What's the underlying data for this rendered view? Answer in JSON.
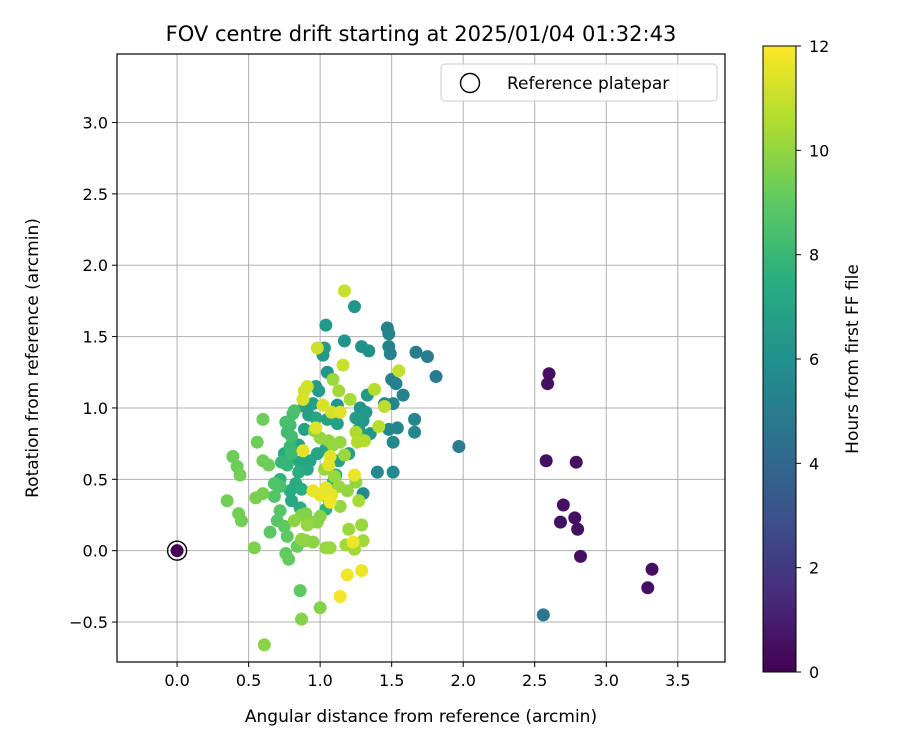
{
  "chart_data": {
    "type": "scatter",
    "title": "FOV centre drift starting at 2025/01/04 01:32:43",
    "xlabel": "Angular distance from reference (arcmin)",
    "ylabel": "Rotation from reference (arcmin)",
    "xlim": [
      -0.42,
      3.83
    ],
    "ylim": [
      -0.78,
      3.48
    ],
    "x_ticks": [
      0.0,
      0.5,
      1.0,
      1.5,
      2.0,
      2.5,
      3.0,
      3.5
    ],
    "x_tick_labels": [
      "0.0",
      "0.5",
      "1.0",
      "1.5",
      "2.0",
      "2.5",
      "3.0",
      "3.5"
    ],
    "y_ticks": [
      -0.5,
      0.0,
      0.5,
      1.0,
      1.5,
      2.0,
      2.5,
      3.0
    ],
    "y_tick_labels": [
      "−0.5",
      "0.0",
      "0.5",
      "1.0",
      "1.5",
      "2.0",
      "2.5",
      "3.0"
    ],
    "grid": true,
    "legend": {
      "position": "top-right",
      "entries": [
        "Reference platepar"
      ]
    },
    "colorbar": {
      "label": "Hours from first FF file",
      "range": [
        0,
        12
      ],
      "ticks": [
        0,
        2,
        4,
        6,
        8,
        10,
        12
      ],
      "tick_labels": [
        "0",
        "2",
        "4",
        "6",
        "8",
        "10",
        "12"
      ],
      "colormap": "viridis"
    },
    "reference": {
      "x": 0.0,
      "y": 0.0,
      "label": "Reference platepar"
    },
    "points": [
      {
        "x": 0.0,
        "y": 0.0,
        "h": 0.0
      },
      {
        "x": 2.6,
        "y": 1.24,
        "h": 0.5
      },
      {
        "x": 2.59,
        "y": 1.17,
        "h": 0.5
      },
      {
        "x": 2.58,
        "y": 0.63,
        "h": 0.5
      },
      {
        "x": 2.79,
        "y": 0.62,
        "h": 0.5
      },
      {
        "x": 2.7,
        "y": 0.32,
        "h": 0.5
      },
      {
        "x": 2.68,
        "y": 0.2,
        "h": 0.5
      },
      {
        "x": 2.78,
        "y": 0.23,
        "h": 0.5
      },
      {
        "x": 2.8,
        "y": 0.15,
        "h": 0.5
      },
      {
        "x": 2.82,
        "y": -0.04,
        "h": 0.5
      },
      {
        "x": 3.32,
        "y": -0.13,
        "h": 0.5
      },
      {
        "x": 3.29,
        "y": -0.26,
        "h": 0.5
      },
      {
        "x": 2.56,
        "y": -0.45,
        "h": 4.8
      },
      {
        "x": 1.97,
        "y": 0.73,
        "h": 5.0
      },
      {
        "x": 1.81,
        "y": 1.22,
        "h": 5.0
      },
      {
        "x": 1.75,
        "y": 1.36,
        "h": 5.0
      },
      {
        "x": 1.67,
        "y": 1.39,
        "h": 5.0
      },
      {
        "x": 1.5,
        "y": 1.2,
        "h": 5.2
      },
      {
        "x": 1.53,
        "y": 1.17,
        "h": 5.2
      },
      {
        "x": 1.47,
        "y": 1.56,
        "h": 5.3
      },
      {
        "x": 1.48,
        "y": 1.52,
        "h": 5.3
      },
      {
        "x": 1.48,
        "y": 1.43,
        "h": 5.3
      },
      {
        "x": 1.49,
        "y": 1.38,
        "h": 5.3
      },
      {
        "x": 1.58,
        "y": 1.09,
        "h": 5.3
      },
      {
        "x": 1.51,
        "y": 1.03,
        "h": 5.4
      },
      {
        "x": 1.45,
        "y": 1.03,
        "h": 5.4
      },
      {
        "x": 1.66,
        "y": 0.92,
        "h": 5.5
      },
      {
        "x": 1.66,
        "y": 0.83,
        "h": 5.5
      },
      {
        "x": 1.54,
        "y": 0.86,
        "h": 5.5
      },
      {
        "x": 1.48,
        "y": 0.85,
        "h": 5.5
      },
      {
        "x": 1.51,
        "y": 0.76,
        "h": 5.6
      },
      {
        "x": 1.51,
        "y": 0.55,
        "h": 5.6
      },
      {
        "x": 1.4,
        "y": 0.55,
        "h": 5.6
      },
      {
        "x": 1.3,
        "y": 0.4,
        "h": 5.7
      },
      {
        "x": 1.29,
        "y": 1.43,
        "h": 6.0
      },
      {
        "x": 1.34,
        "y": 1.4,
        "h": 6.0
      },
      {
        "x": 1.24,
        "y": 1.71,
        "h": 6.2
      },
      {
        "x": 1.17,
        "y": 1.47,
        "h": 6.2
      },
      {
        "x": 1.04,
        "y": 1.58,
        "h": 6.4
      },
      {
        "x": 1.03,
        "y": 1.42,
        "h": 6.4
      },
      {
        "x": 1.02,
        "y": 1.37,
        "h": 6.4
      },
      {
        "x": 1.05,
        "y": 1.25,
        "h": 6.3
      },
      {
        "x": 1.12,
        "y": 1.02,
        "h": 6.2
      },
      {
        "x": 1.28,
        "y": 1.0,
        "h": 6.2
      },
      {
        "x": 1.33,
        "y": 1.09,
        "h": 6.3
      },
      {
        "x": 1.32,
        "y": 0.97,
        "h": 6.3
      },
      {
        "x": 1.3,
        "y": 0.91,
        "h": 6.3
      },
      {
        "x": 1.35,
        "y": 0.82,
        "h": 6.3
      },
      {
        "x": 1.27,
        "y": 0.85,
        "h": 6.4
      },
      {
        "x": 1.25,
        "y": 0.93,
        "h": 6.5
      },
      {
        "x": 0.99,
        "y": 1.12,
        "h": 6.6
      },
      {
        "x": 0.97,
        "y": 1.15,
        "h": 6.6
      },
      {
        "x": 0.95,
        "y": 1.03,
        "h": 6.8
      },
      {
        "x": 0.89,
        "y": 1.01,
        "h": 6.8
      },
      {
        "x": 0.92,
        "y": 0.95,
        "h": 6.8
      },
      {
        "x": 0.89,
        "y": 0.85,
        "h": 6.9
      },
      {
        "x": 0.85,
        "y": 0.74,
        "h": 7.0
      },
      {
        "x": 0.97,
        "y": 0.93,
        "h": 7.0
      },
      {
        "x": 1.05,
        "y": 0.92,
        "h": 6.9
      },
      {
        "x": 1.12,
        "y": 0.89,
        "h": 6.8
      },
      {
        "x": 1.2,
        "y": 0.68,
        "h": 6.8
      },
      {
        "x": 1.13,
        "y": 0.63,
        "h": 6.9
      },
      {
        "x": 1.04,
        "y": 0.71,
        "h": 7.0
      },
      {
        "x": 0.98,
        "y": 0.68,
        "h": 7.0
      },
      {
        "x": 0.93,
        "y": 0.63,
        "h": 7.0
      },
      {
        "x": 0.91,
        "y": 0.57,
        "h": 7.1
      },
      {
        "x": 0.86,
        "y": 0.62,
        "h": 7.1
      },
      {
        "x": 0.8,
        "y": 0.65,
        "h": 7.2
      },
      {
        "x": 0.75,
        "y": 0.68,
        "h": 7.3
      },
      {
        "x": 0.83,
        "y": 0.47,
        "h": 7.3
      },
      {
        "x": 0.79,
        "y": 0.42,
        "h": 7.4
      },
      {
        "x": 0.87,
        "y": 0.43,
        "h": 7.5
      },
      {
        "x": 0.85,
        "y": 0.55,
        "h": 7.5
      },
      {
        "x": 0.8,
        "y": 0.35,
        "h": 7.3
      },
      {
        "x": 0.86,
        "y": 0.3,
        "h": 7.4
      },
      {
        "x": 1.09,
        "y": 0.48,
        "h": 7.5
      },
      {
        "x": 1.11,
        "y": 0.53,
        "h": 7.6
      },
      {
        "x": 1.06,
        "y": 0.36,
        "h": 7.6
      },
      {
        "x": 1.04,
        "y": 0.29,
        "h": 7.7
      },
      {
        "x": 0.72,
        "y": 0.5,
        "h": 7.8
      },
      {
        "x": 0.73,
        "y": 0.62,
        "h": 7.9
      },
      {
        "x": 0.77,
        "y": 0.6,
        "h": 7.9
      },
      {
        "x": 0.79,
        "y": 0.73,
        "h": 8.0
      },
      {
        "x": 0.8,
        "y": 0.68,
        "h": 8.1
      },
      {
        "x": 0.77,
        "y": 0.83,
        "h": 8.2
      },
      {
        "x": 0.8,
        "y": 0.8,
        "h": 8.3
      },
      {
        "x": 0.79,
        "y": 0.88,
        "h": 8.3
      },
      {
        "x": 0.81,
        "y": 0.96,
        "h": 8.4
      },
      {
        "x": 0.76,
        "y": 0.9,
        "h": 8.4
      },
      {
        "x": 0.82,
        "y": 0.98,
        "h": 8.5
      },
      {
        "x": 0.72,
        "y": 0.45,
        "h": 8.5
      },
      {
        "x": 0.68,
        "y": 0.47,
        "h": 8.6
      },
      {
        "x": 0.68,
        "y": 0.38,
        "h": 8.7
      },
      {
        "x": 0.72,
        "y": 0.28,
        "h": 8.8
      },
      {
        "x": 0.7,
        "y": 0.21,
        "h": 8.8
      },
      {
        "x": 0.65,
        "y": 0.13,
        "h": 8.9
      },
      {
        "x": 0.75,
        "y": 0.17,
        "h": 9.0
      },
      {
        "x": 0.77,
        "y": 0.1,
        "h": 9.0
      },
      {
        "x": 0.76,
        "y": -0.02,
        "h": 9.1
      },
      {
        "x": 0.78,
        "y": -0.06,
        "h": 9.1
      },
      {
        "x": 0.86,
        "y": -0.28,
        "h": 9.0
      },
      {
        "x": 0.84,
        "y": 0.03,
        "h": 9.2
      },
      {
        "x": 0.64,
        "y": 0.6,
        "h": 9.3
      },
      {
        "x": 0.6,
        "y": 0.63,
        "h": 9.3
      },
      {
        "x": 0.56,
        "y": 0.76,
        "h": 9.3
      },
      {
        "x": 0.6,
        "y": 0.92,
        "h": 9.3
      },
      {
        "x": 0.39,
        "y": 0.66,
        "h": 9.3
      },
      {
        "x": 0.42,
        "y": 0.59,
        "h": 9.3
      },
      {
        "x": 0.44,
        "y": 0.53,
        "h": 9.4
      },
      {
        "x": 0.35,
        "y": 0.35,
        "h": 9.4
      },
      {
        "x": 0.43,
        "y": 0.26,
        "h": 9.4
      },
      {
        "x": 0.45,
        "y": 0.21,
        "h": 9.4
      },
      {
        "x": 0.55,
        "y": 0.37,
        "h": 9.5
      },
      {
        "x": 0.6,
        "y": 0.4,
        "h": 9.5
      },
      {
        "x": 0.54,
        "y": 0.02,
        "h": 9.6
      },
      {
        "x": 0.87,
        "y": 0.25,
        "h": 9.7
      },
      {
        "x": 0.9,
        "y": 0.26,
        "h": 9.7
      },
      {
        "x": 0.94,
        "y": 0.2,
        "h": 9.8
      },
      {
        "x": 0.98,
        "y": 0.2,
        "h": 9.8
      },
      {
        "x": 1.0,
        "y": 0.24,
        "h": 9.8
      },
      {
        "x": 0.95,
        "y": 0.06,
        "h": 9.9
      },
      {
        "x": 0.9,
        "y": 0.07,
        "h": 9.9
      },
      {
        "x": 0.82,
        "y": 0.21,
        "h": 9.9
      },
      {
        "x": 0.87,
        "y": 0.08,
        "h": 10.0
      },
      {
        "x": 0.91,
        "y": 0.18,
        "h": 10.0
      },
      {
        "x": 1.0,
        "y": -0.4,
        "h": 9.7
      },
      {
        "x": 0.87,
        "y": -0.48,
        "h": 9.7
      },
      {
        "x": 0.61,
        "y": -0.66,
        "h": 9.8
      },
      {
        "x": 1.04,
        "y": 0.02,
        "h": 10.0
      },
      {
        "x": 1.07,
        "y": 0.02,
        "h": 10.1
      },
      {
        "x": 1.14,
        "y": 0.31,
        "h": 10.0
      },
      {
        "x": 1.19,
        "y": 0.42,
        "h": 10.0
      },
      {
        "x": 1.25,
        "y": 0.48,
        "h": 10.0
      },
      {
        "x": 1.29,
        "y": 0.18,
        "h": 10.1
      },
      {
        "x": 1.2,
        "y": 0.15,
        "h": 10.2
      },
      {
        "x": 1.3,
        "y": 0.07,
        "h": 10.3
      },
      {
        "x": 1.24,
        "y": 0.01,
        "h": 10.3
      },
      {
        "x": 1.18,
        "y": 0.04,
        "h": 10.3
      },
      {
        "x": 1.27,
        "y": 0.35,
        "h": 10.4
      },
      {
        "x": 0.96,
        "y": 0.84,
        "h": 10.0
      },
      {
        "x": 1.0,
        "y": 0.79,
        "h": 10.0
      },
      {
        "x": 1.06,
        "y": 0.77,
        "h": 10.0
      },
      {
        "x": 1.09,
        "y": 0.74,
        "h": 10.0
      },
      {
        "x": 1.14,
        "y": 0.76,
        "h": 10.0
      },
      {
        "x": 1.17,
        "y": 0.67,
        "h": 10.1
      },
      {
        "x": 1.03,
        "y": 0.57,
        "h": 10.1
      },
      {
        "x": 1.1,
        "y": 0.52,
        "h": 10.1
      },
      {
        "x": 1.13,
        "y": 0.45,
        "h": 10.1
      },
      {
        "x": 1.09,
        "y": 1.2,
        "h": 10.2
      },
      {
        "x": 1.13,
        "y": 1.12,
        "h": 10.3
      },
      {
        "x": 1.21,
        "y": 1.06,
        "h": 10.4
      },
      {
        "x": 1.25,
        "y": 0.83,
        "h": 10.5
      },
      {
        "x": 1.26,
        "y": 0.76,
        "h": 10.6
      },
      {
        "x": 1.31,
        "y": 0.77,
        "h": 10.6
      },
      {
        "x": 1.38,
        "y": 1.13,
        "h": 10.6
      },
      {
        "x": 1.41,
        "y": 0.87,
        "h": 10.7
      },
      {
        "x": 1.45,
        "y": 1.01,
        "h": 10.8
      },
      {
        "x": 1.55,
        "y": 1.26,
        "h": 10.9
      },
      {
        "x": 1.16,
        "y": 1.3,
        "h": 11.0
      },
      {
        "x": 1.17,
        "y": 1.82,
        "h": 11.0
      },
      {
        "x": 0.98,
        "y": 1.42,
        "h": 11.1
      },
      {
        "x": 0.91,
        "y": 1.15,
        "h": 11.2
      },
      {
        "x": 0.89,
        "y": 1.12,
        "h": 11.2
      },
      {
        "x": 0.88,
        "y": 1.06,
        "h": 11.3
      },
      {
        "x": 1.02,
        "y": 1.02,
        "h": 11.3
      },
      {
        "x": 1.08,
        "y": 0.97,
        "h": 11.3
      },
      {
        "x": 1.14,
        "y": 0.97,
        "h": 11.4
      },
      {
        "x": 0.97,
        "y": 0.86,
        "h": 11.4
      },
      {
        "x": 0.88,
        "y": 0.7,
        "h": 11.5
      },
      {
        "x": 1.06,
        "y": 0.6,
        "h": 11.5
      },
      {
        "x": 1.07,
        "y": 0.66,
        "h": 11.5
      },
      {
        "x": 0.95,
        "y": 0.42,
        "h": 11.6
      },
      {
        "x": 1.0,
        "y": 0.39,
        "h": 11.6
      },
      {
        "x": 1.04,
        "y": 0.44,
        "h": 11.6
      },
      {
        "x": 1.08,
        "y": 0.39,
        "h": 11.6
      },
      {
        "x": 1.24,
        "y": 0.53,
        "h": 11.7
      },
      {
        "x": 1.23,
        "y": 0.06,
        "h": 11.7
      },
      {
        "x": 1.29,
        "y": -0.14,
        "h": 11.7
      },
      {
        "x": 1.19,
        "y": -0.17,
        "h": 11.8
      },
      {
        "x": 1.14,
        "y": -0.32,
        "h": 11.8
      },
      {
        "x": 1.07,
        "y": 0.34,
        "h": 11.8
      }
    ]
  }
}
